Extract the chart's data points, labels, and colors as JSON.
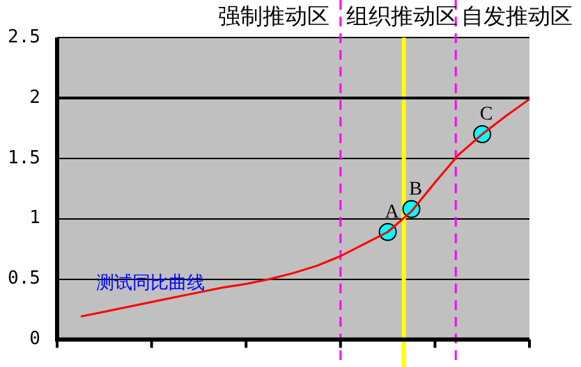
{
  "chart_data": {
    "type": "line",
    "categories": [
      null,
      null,
      null,
      null,
      null,
      null,
      null,
      null,
      null,
      null,
      null,
      null,
      null,
      null,
      null,
      null,
      null,
      null,
      null,
      null,
      null
    ],
    "ylim": [
      0,
      2.5
    ],
    "yticks": [
      0,
      0.5,
      1,
      1.5,
      2,
      2.5
    ],
    "grid": "y",
    "tick_labels": "y",
    "series": [
      {
        "color": "#ff0000",
        "type": "line",
        "values": [
          null,
          0.19,
          0.23,
          0.27,
          0.31,
          0.35,
          0.39,
          0.43,
          0.46,
          0.5,
          0.55,
          0.61,
          0.69,
          0.79,
          0.89,
          1.06,
          1.3,
          1.53,
          1.7,
          1.85,
          1.99
        ]
      },
      {
        "color": "#00ffff",
        "type": "scatter",
        "marker": "circle",
        "values": [
          null,
          null,
          null,
          null,
          null,
          null,
          null,
          null,
          null,
          null,
          null,
          null,
          null,
          null,
          0.89,
          1.08,
          null,
          null,
          1.7,
          null,
          null
        ],
        "value_labels": [
          null,
          null,
          null,
          null,
          null,
          null,
          null,
          null,
          null,
          null,
          null,
          null,
          null,
          null,
          "A",
          "B",
          null,
          null,
          "C",
          null,
          null
        ]
      }
    ],
    "ref_lines": [
      {
        "axis": "y",
        "value": 2,
        "color": "#000000",
        "line_style": "solid"
      }
    ],
    "annotations": [
      "强制推动区",
      "组织推动区",
      "自发推动区",
      "测试同比曲线"
    ]
  }
}
